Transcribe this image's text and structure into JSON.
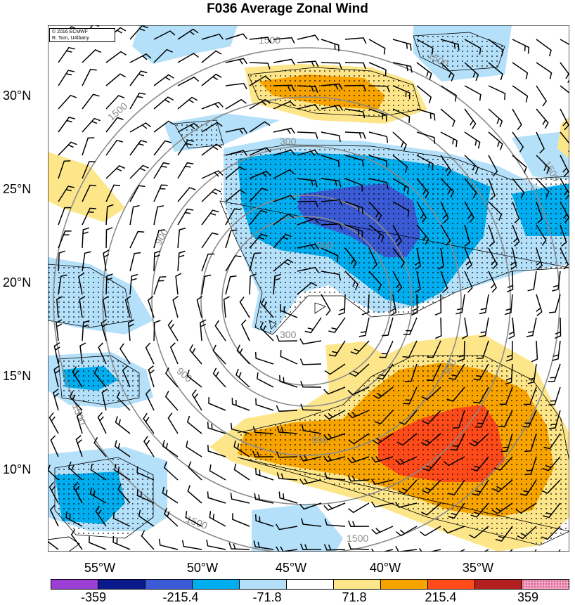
{
  "title": "F036 Average Zonal Wind",
  "credit": {
    "line1": "© 2016 ECMWF",
    "line2": "R. Torn, UAlbany"
  },
  "lat_labels": [
    "30°N",
    "25°N",
    "20°N",
    "15°N",
    "10°N"
  ],
  "lon_labels": [
    "55°W",
    "50°W",
    "45°W",
    "40°W",
    "35°W"
  ],
  "contour_labels": [
    "300",
    "300",
    "300",
    "900",
    "900",
    "900",
    "900",
    "1500",
    "1500",
    "1500",
    "1500",
    "1500",
    "1500",
    "1500"
  ],
  "colorbar": {
    "labels": [
      "-359",
      "-215.4",
      "-71.8",
      "71.8",
      "215.4",
      "359"
    ],
    "colors": [
      "#9b3fd6",
      "#0a1a8a",
      "#3b5bd6",
      "#00aeef",
      "#b4e0fa",
      "#ffffff",
      "#fde68a",
      "#f7a400",
      "#ff4a1a",
      "#b32020",
      "#ff9ec4"
    ]
  }
}
